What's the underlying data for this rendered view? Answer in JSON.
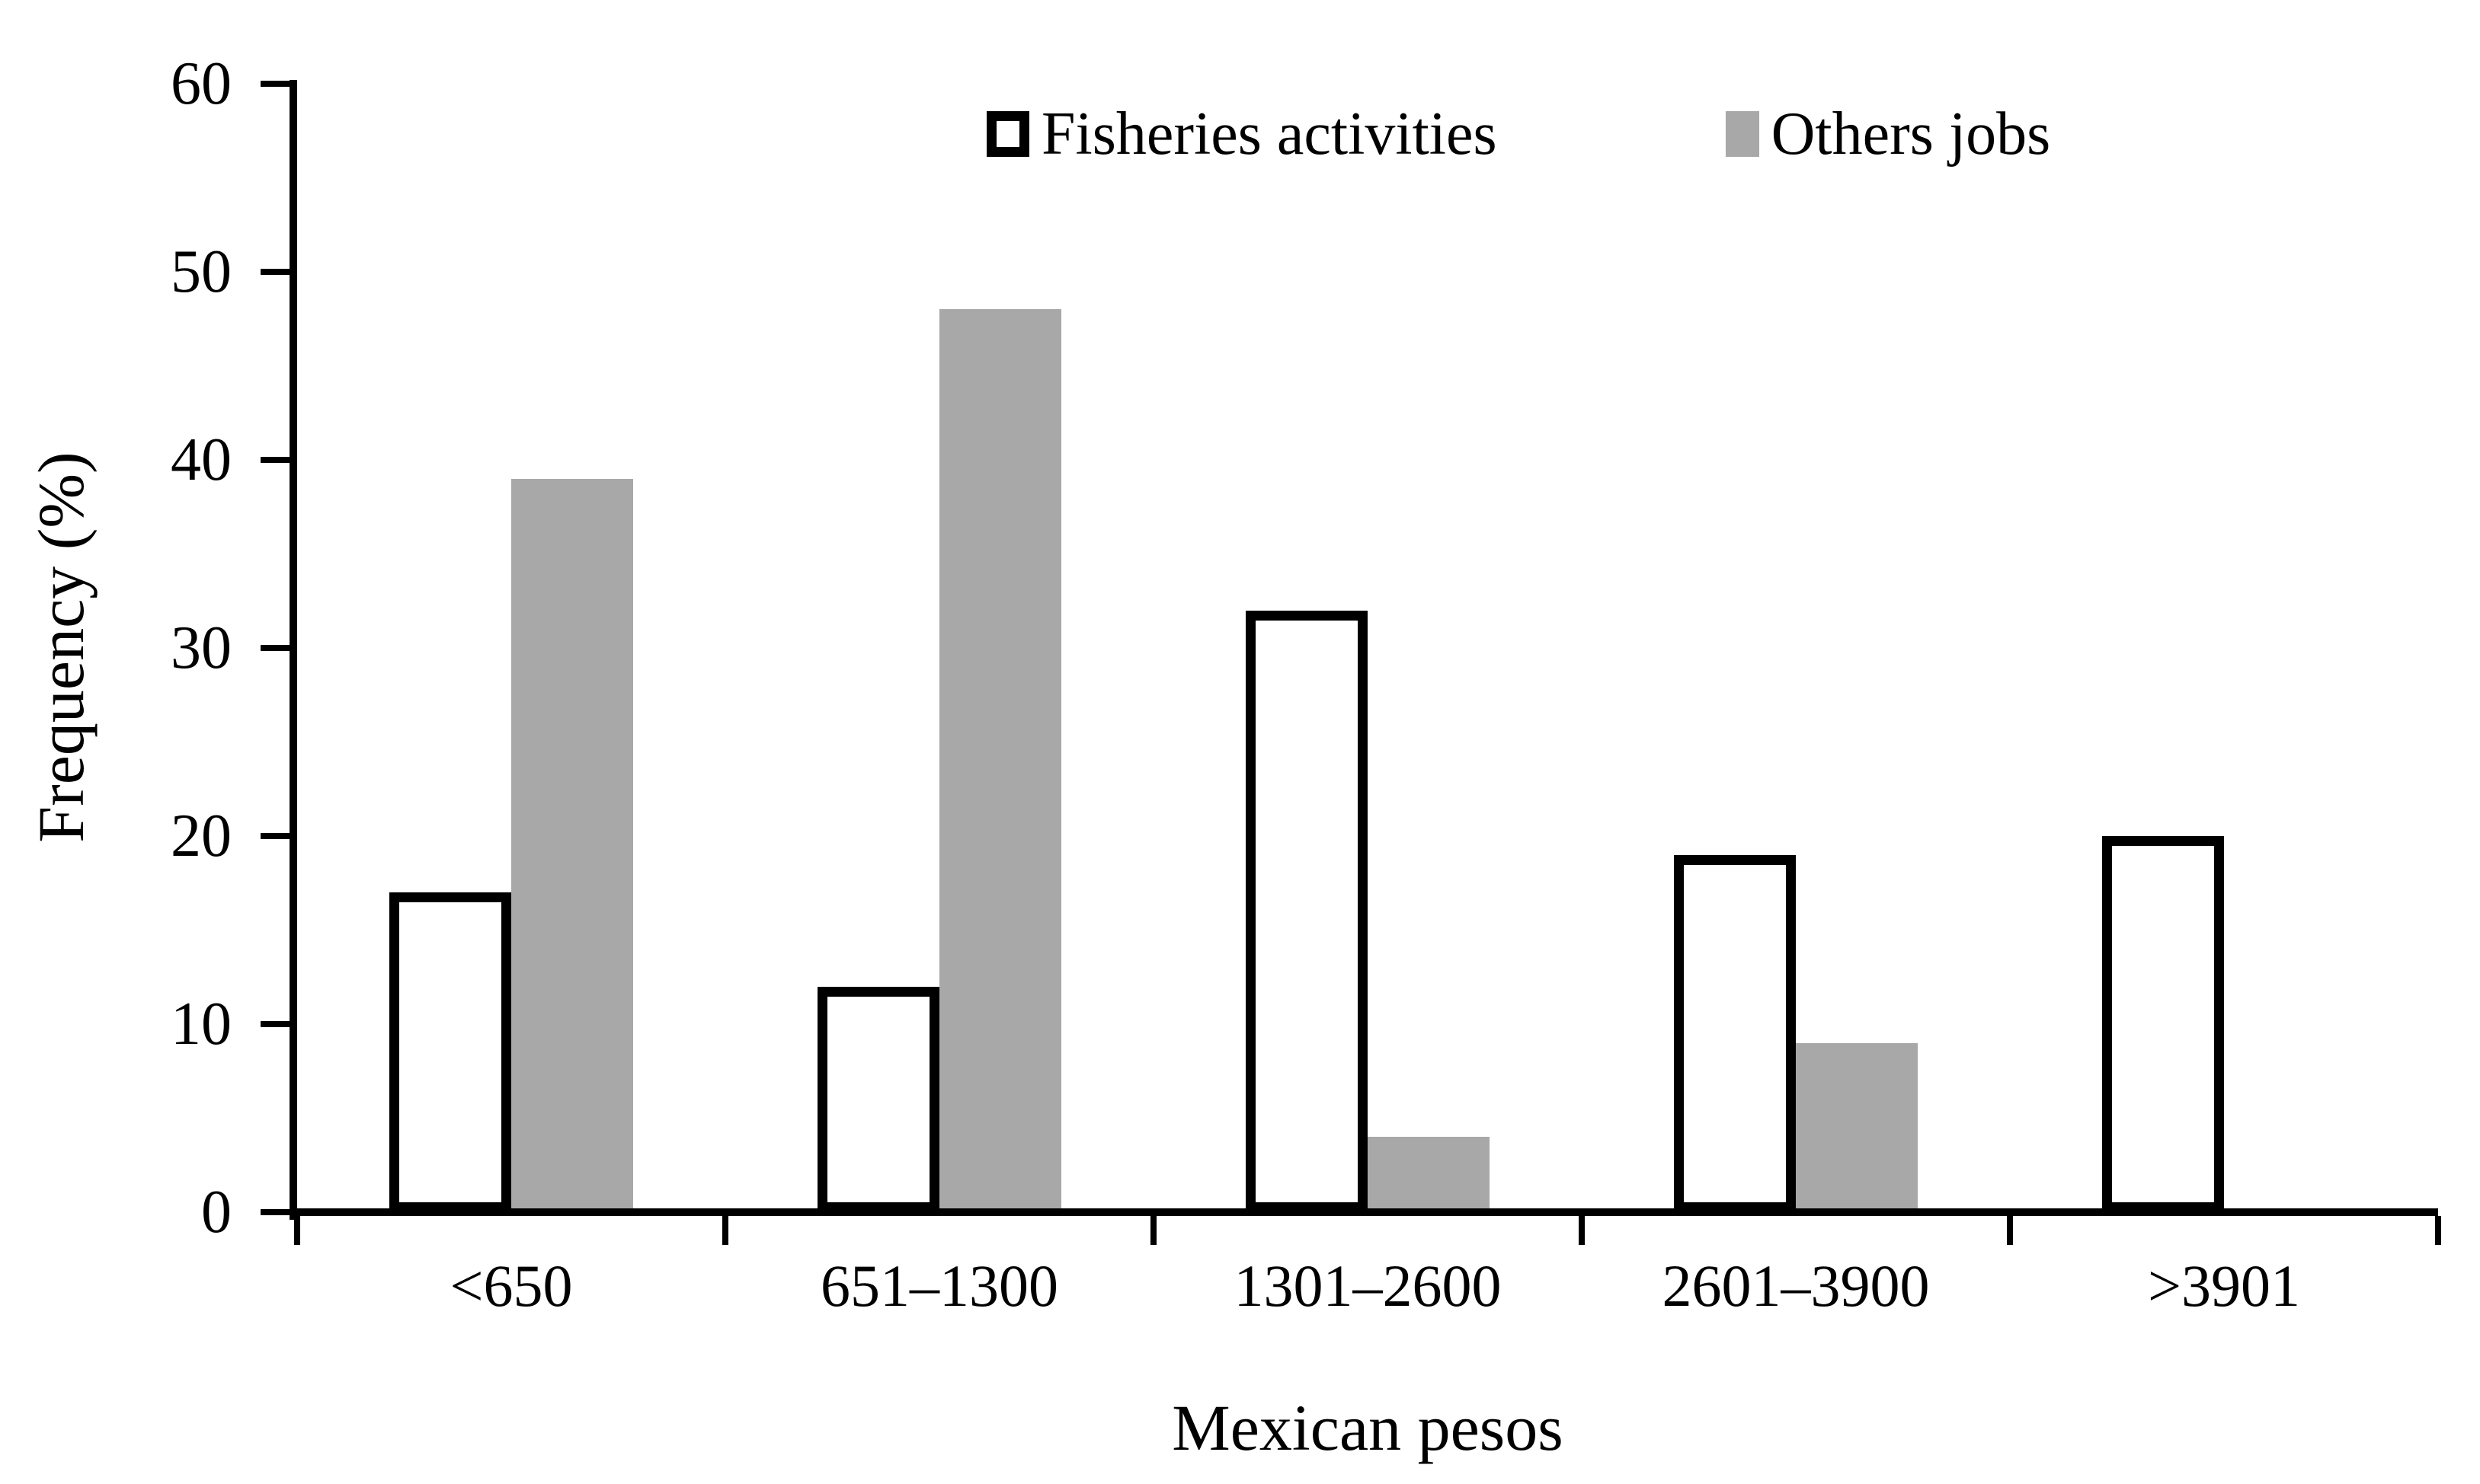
{
  "figure": {
    "background": "#ffffff",
    "text_color": "#000000",
    "axis_color": "#000000"
  },
  "chart_data": {
    "type": "bar",
    "title": "",
    "xlabel": "Mexican pesos",
    "ylabel": "Frequency (%)",
    "categories": [
      "<650",
      "651–1300",
      "1301–2600",
      "2601–3900",
      ">3901"
    ],
    "series": [
      {
        "name": "Fisheries activities",
        "fill": "#ffffff",
        "outline": "#000000",
        "values": [
          17,
          12,
          32,
          19,
          20
        ]
      },
      {
        "name": "Others jobs",
        "fill": "#a8a8a8",
        "outline": null,
        "values": [
          39,
          48,
          4,
          9,
          0
        ]
      }
    ],
    "ylim": [
      0,
      60
    ],
    "ytick_step": 10,
    "yticks": [
      0,
      10,
      20,
      30,
      40,
      50,
      60
    ],
    "grid": false,
    "legend_position": "top-inside"
  }
}
